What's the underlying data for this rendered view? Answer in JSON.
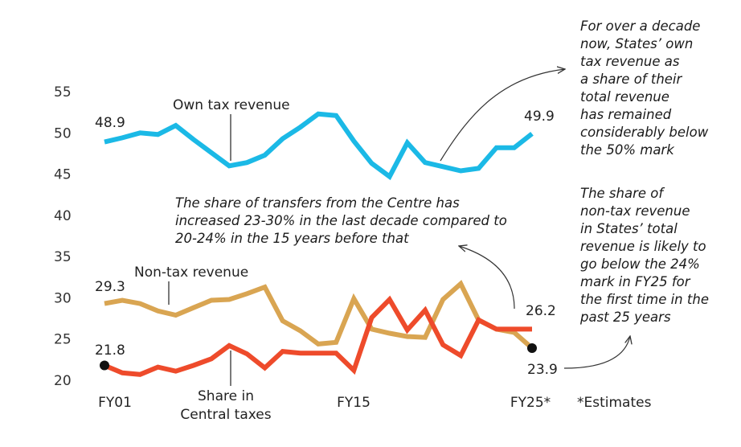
{
  "chart_data": {
    "type": "line",
    "title": "",
    "xlabel": "",
    "ylabel": "",
    "ylim": [
      20,
      55
    ],
    "yticks": [
      20,
      25,
      30,
      35,
      40,
      45,
      50,
      55
    ],
    "grid": false,
    "x_start_fy": 1,
    "x_end_fy": 25,
    "x_tick_labels": [
      "FY01",
      "FY15",
      "FY25*"
    ],
    "series": [
      {
        "name": "Own tax revenue",
        "color": "#1BB9E6",
        "values": [
          48.9,
          49.4,
          50.0,
          49.8,
          50.9,
          49.2,
          47.6,
          46.0,
          46.4,
          47.3,
          49.3,
          50.7,
          52.3,
          52.1,
          49.0,
          46.3,
          44.7,
          48.8,
          46.4,
          45.9,
          45.4,
          45.7,
          48.2,
          48.2,
          49.9
        ],
        "start_label": "48.9",
        "end_label": "49.9"
      },
      {
        "name": "Non-tax revenue",
        "color": "#D9A552",
        "values": [
          29.3,
          29.7,
          29.3,
          28.4,
          27.9,
          28.8,
          29.7,
          29.8,
          30.5,
          31.3,
          27.2,
          26.0,
          24.4,
          24.6,
          29.9,
          26.2,
          25.7,
          25.3,
          25.2,
          29.8,
          31.7,
          27.3,
          26.2,
          25.8,
          23.9
        ],
        "start_label": "29.3",
        "end_label": "23.9"
      },
      {
        "name": "Share in Central taxes",
        "color": "#EE4B2B",
        "values": [
          21.8,
          20.9,
          20.7,
          21.6,
          21.1,
          21.8,
          22.6,
          24.2,
          23.2,
          21.5,
          23.5,
          23.3,
          23.3,
          23.3,
          21.2,
          27.6,
          29.8,
          26.1,
          28.5,
          24.3,
          23.0,
          27.3,
          26.2,
          26.2,
          26.2
        ],
        "start_label": "21.8",
        "end_label": "26.2"
      }
    ],
    "series_labels": {
      "own_tax": "Own tax revenue",
      "non_tax": "Non-tax revenue",
      "central_line1": "Share in",
      "central_line2": "Central taxes"
    },
    "annotations": {
      "own_tax_note": [
        "For over a decade",
        "now, States’ own",
        "tax revenue as",
        "a share of their",
        "total revenue",
        "has remained",
        "considerably below",
        "the 50% mark"
      ],
      "transfers_note": [
        "The share of transfers from the Centre has",
        "increased 23-30% in the last decade compared to",
        "20-24% in the 15 years before that"
      ],
      "non_tax_note": [
        "The share of",
        "non-tax revenue",
        "in States’ total",
        "revenue is likely to",
        "go below the 24%",
        "mark in FY25 for",
        "the first time in the",
        "past 25 years"
      ],
      "footnote": "*Estimates"
    }
  }
}
